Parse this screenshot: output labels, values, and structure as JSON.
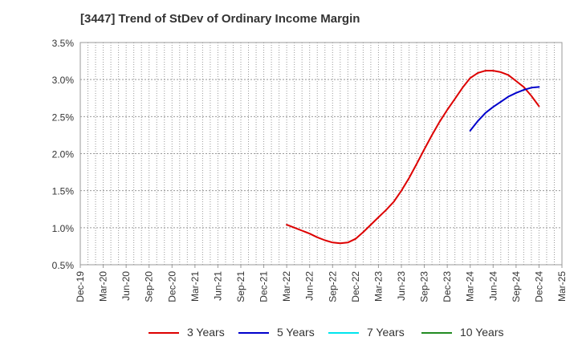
{
  "title": "[3447]  Trend of StDev of Ordinary Income Margin",
  "chart_data": {
    "type": "line",
    "title": "[3447]  Trend of StDev of Ordinary Income Margin",
    "xlabel": "",
    "ylabel": "",
    "x_ticks": [
      "Dec-19",
      "Mar-20",
      "Jun-20",
      "Sep-20",
      "Dec-20",
      "Mar-21",
      "Jun-21",
      "Sep-21",
      "Dec-21",
      "Mar-22",
      "Jun-22",
      "Sep-22",
      "Dec-22",
      "Mar-23",
      "Jun-23",
      "Sep-23",
      "Dec-23",
      "Mar-24",
      "Jun-24",
      "Sep-24",
      "Dec-24",
      "Mar-25"
    ],
    "y_ticks": [
      "0.5%",
      "1.0%",
      "1.5%",
      "2.0%",
      "2.5%",
      "3.0%",
      "3.5%"
    ],
    "y_tick_values": [
      0.5,
      1.0,
      1.5,
      2.0,
      2.5,
      3.0,
      3.5
    ],
    "ylim": [
      0.5,
      3.5
    ],
    "grid": true,
    "legend_position": "bottom",
    "series": [
      {
        "name": "3 Years",
        "color": "#dd0000",
        "points": [
          [
            "Mar-22",
            1.04
          ],
          [
            "Apr-22",
            1.0
          ],
          [
            "May-22",
            0.96
          ],
          [
            "Jun-22",
            0.92
          ],
          [
            "Jul-22",
            0.87
          ],
          [
            "Aug-22",
            0.83
          ],
          [
            "Sep-22",
            0.8
          ],
          [
            "Oct-22",
            0.79
          ],
          [
            "Nov-22",
            0.8
          ],
          [
            "Dec-22",
            0.85
          ],
          [
            "Jan-23",
            0.94
          ],
          [
            "Feb-23",
            1.04
          ],
          [
            "Mar-23",
            1.14
          ],
          [
            "Apr-23",
            1.24
          ],
          [
            "May-23",
            1.35
          ],
          [
            "Jun-23",
            1.5
          ],
          [
            "Jul-23",
            1.67
          ],
          [
            "Aug-23",
            1.86
          ],
          [
            "Sep-23",
            2.06
          ],
          [
            "Oct-23",
            2.25
          ],
          [
            "Nov-23",
            2.43
          ],
          [
            "Dec-23",
            2.59
          ],
          [
            "Jan-24",
            2.74
          ],
          [
            "Feb-24",
            2.89
          ],
          [
            "Mar-24",
            3.02
          ],
          [
            "Apr-24",
            3.09
          ],
          [
            "May-24",
            3.12
          ],
          [
            "Jun-24",
            3.12
          ],
          [
            "Jul-24",
            3.1
          ],
          [
            "Aug-24",
            3.06
          ],
          [
            "Sep-24",
            2.98
          ],
          [
            "Oct-24",
            2.9
          ],
          [
            "Nov-24",
            2.78
          ],
          [
            "Dec-24",
            2.64
          ]
        ]
      },
      {
        "name": "5 Years",
        "color": "#0000cc",
        "points": [
          [
            "Mar-24",
            2.31
          ],
          [
            "Apr-24",
            2.44
          ],
          [
            "May-24",
            2.55
          ],
          [
            "Jun-24",
            2.63
          ],
          [
            "Jul-24",
            2.7
          ],
          [
            "Aug-24",
            2.77
          ],
          [
            "Sep-24",
            2.82
          ],
          [
            "Oct-24",
            2.86
          ],
          [
            "Nov-24",
            2.89
          ],
          [
            "Dec-24",
            2.9
          ]
        ]
      },
      {
        "name": "7 Years",
        "color": "#00e5ee",
        "points": []
      },
      {
        "name": "10 Years",
        "color": "#228b22",
        "points": []
      }
    ]
  }
}
